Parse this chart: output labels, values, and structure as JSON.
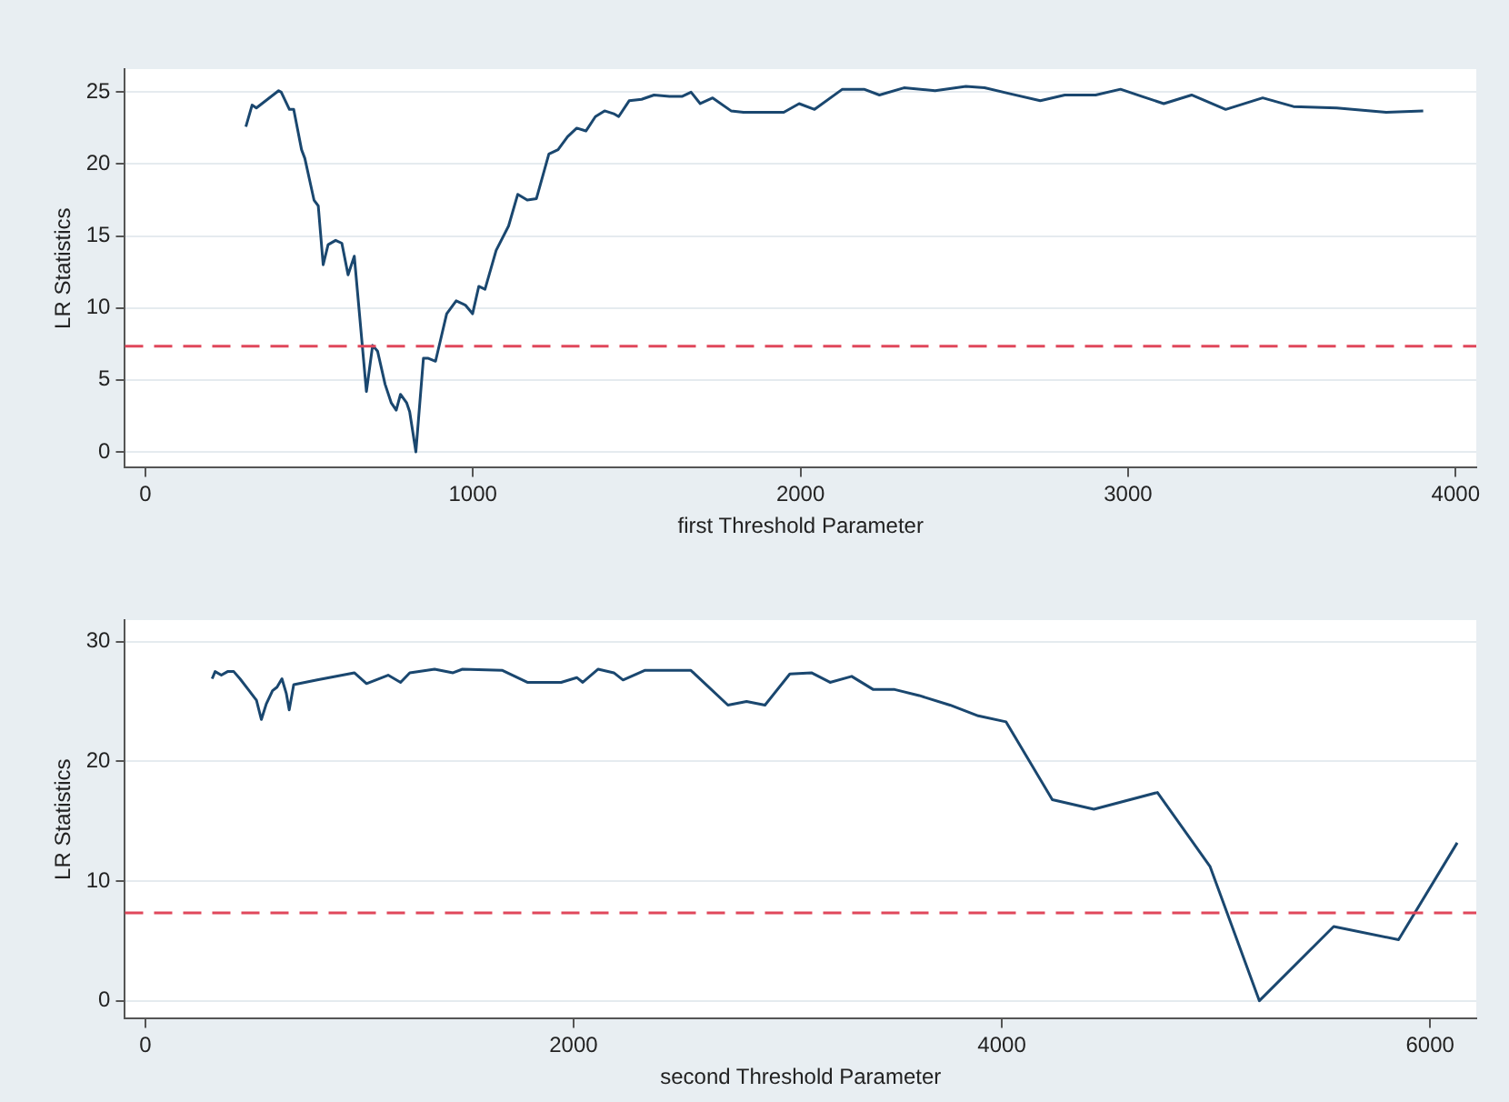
{
  "chart_data": [
    {
      "type": "line",
      "xlabel": "first Threshold Parameter",
      "ylabel": "LR Statistics",
      "xlim": [
        -62,
        4063
      ],
      "xticks": [
        0,
        1000,
        2000,
        3000,
        4000
      ],
      "ylim": [
        -1.1,
        26.6
      ],
      "yticks": [
        0,
        5,
        10,
        15,
        20,
        25
      ],
      "grid": "y",
      "marker": "none",
      "line_style": "solid",
      "ref_lines": [
        {
          "axis": "y",
          "value": 7.35,
          "color": "#e0475b",
          "line_style": "dashed"
        }
      ],
      "series": [
        {
          "color": "#1a476f",
          "x": [
            307,
            326,
            339,
            373,
            407,
            415,
            440,
            453,
            477,
            487,
            515,
            528,
            543,
            558,
            581,
            600,
            619,
            638,
            675,
            694,
            709,
            732,
            751,
            766,
            779,
            798,
            807,
            826,
            849,
            864,
            886,
            920,
            949,
            977,
            999,
            1018,
            1037,
            1071,
            1109,
            1137,
            1166,
            1194,
            1232,
            1260,
            1289,
            1317,
            1345,
            1374,
            1402,
            1430,
            1445,
            1477,
            1515,
            1553,
            1600,
            1638,
            1666,
            1694,
            1732,
            1788,
            1826,
            1949,
            1996,
            2043,
            2128,
            2194,
            2241,
            2316,
            2411,
            2505,
            2562,
            2637,
            2732,
            2807,
            2901,
            2977,
            3043,
            3109,
            3194,
            3298,
            3411,
            3505,
            3637,
            3788,
            3901
          ],
          "values": [
            22.6,
            24.1,
            23.9,
            24.5,
            25.1,
            25.0,
            23.8,
            23.8,
            21.0,
            20.4,
            17.5,
            17.1,
            13.0,
            14.4,
            14.7,
            14.5,
            12.3,
            13.6,
            4.2,
            7.4,
            7.0,
            4.7,
            3.4,
            2.9,
            4.0,
            3.4,
            2.8,
            0.0,
            6.5,
            6.5,
            6.3,
            9.6,
            10.5,
            10.2,
            9.6,
            11.5,
            11.3,
            14.0,
            15.7,
            17.9,
            17.5,
            17.6,
            20.7,
            21.0,
            21.9,
            22.5,
            22.3,
            23.3,
            23.7,
            23.5,
            23.3,
            24.4,
            24.5,
            24.8,
            24.7,
            24.7,
            25.0,
            24.2,
            24.6,
            23.7,
            23.6,
            23.6,
            24.2,
            23.8,
            25.2,
            25.2,
            24.8,
            25.3,
            25.1,
            25.4,
            25.3,
            24.9,
            24.4,
            24.8,
            24.8,
            25.2,
            24.7,
            24.2,
            24.8,
            23.8,
            24.6,
            24.0,
            23.9,
            23.6,
            23.7
          ]
        }
      ]
    },
    {
      "type": "line",
      "xlabel": "second Threshold Parameter",
      "ylabel": "LR Statistics",
      "xlim": [
        -95,
        6216
      ],
      "xticks": [
        0,
        2000,
        4000,
        6000
      ],
      "ylim": [
        -1.5,
        31.8
      ],
      "yticks": [
        0,
        10,
        20,
        30
      ],
      "grid": "y",
      "marker": "none",
      "line_style": "solid",
      "ref_lines": [
        {
          "axis": "y",
          "value": 7.35,
          "color": "#e0475b",
          "line_style": "dashed"
        }
      ],
      "series": [
        {
          "color": "#1a476f",
          "x": [
            312,
            326,
            355,
            384,
            413,
            442,
            485,
            519,
            542,
            565,
            594,
            615,
            638,
            658,
            672,
            693,
            803,
            976,
            1033,
            1134,
            1192,
            1235,
            1351,
            1437,
            1481,
            1668,
            1726,
            1784,
            1942,
            2015,
            2043,
            2115,
            2188,
            2231,
            2332,
            2548,
            2721,
            2808,
            2894,
            3010,
            3111,
            3198,
            3299,
            3400,
            3500,
            3614,
            3758,
            3890,
            4020,
            4236,
            4430,
            4727,
            4973,
            5203,
            5550,
            5853,
            6127
          ],
          "values": [
            26.9,
            27.5,
            27.2,
            27.5,
            27.5,
            26.9,
            25.9,
            25.1,
            23.5,
            24.8,
            25.9,
            26.2,
            26.9,
            25.7,
            24.3,
            26.4,
            26.8,
            27.4,
            26.5,
            27.2,
            26.6,
            27.4,
            27.7,
            27.4,
            27.7,
            27.6,
            27.1,
            26.6,
            26.6,
            27.0,
            26.6,
            27.7,
            27.4,
            26.8,
            27.6,
            27.6,
            24.7,
            25.0,
            24.7,
            27.3,
            27.4,
            26.6,
            27.1,
            26.0,
            26.0,
            25.5,
            24.7,
            23.8,
            23.3,
            16.8,
            16.0,
            17.4,
            11.2,
            0.0,
            6.2,
            5.1,
            13.2
          ]
        }
      ]
    }
  ]
}
